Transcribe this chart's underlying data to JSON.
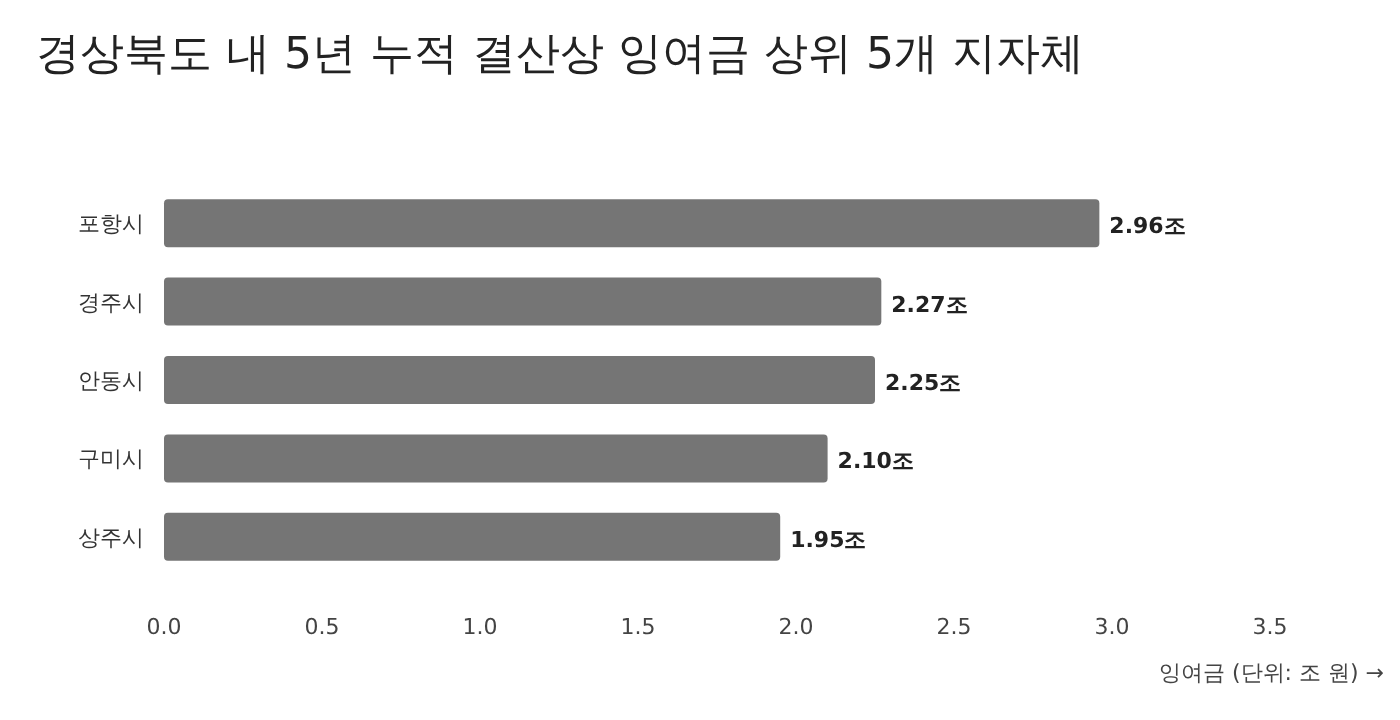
{
  "chart_data": {
    "type": "bar",
    "orientation": "horizontal",
    "title": "경상북도 내 5년 누적 결산상 잉여금 상위 5개 지자체",
    "xlabel": "잉여금 (단위: 조 원) →",
    "categories": [
      "포항시",
      "경주시",
      "안동시",
      "구미시",
      "상주시"
    ],
    "values": [
      2.96,
      2.27,
      2.25,
      2.1,
      1.95
    ],
    "value_labels": [
      "2.96조",
      "2.27조",
      "2.25조",
      "2.10조",
      "1.95조"
    ],
    "color": "#757575",
    "xlim": [
      0,
      3.5
    ],
    "xticks": [
      {
        "value": 0,
        "label": "0.0"
      },
      {
        "value": 0.5,
        "label": "0.5"
      },
      {
        "value": 1,
        "label": "1.0"
      },
      {
        "value": 1.5,
        "label": "1.5"
      },
      {
        "value": 2,
        "label": "2.0"
      },
      {
        "value": 2.5,
        "label": "2.5"
      },
      {
        "value": 3,
        "label": "3.0"
      },
      {
        "value": 3.5,
        "label": "3.5"
      }
    ]
  }
}
